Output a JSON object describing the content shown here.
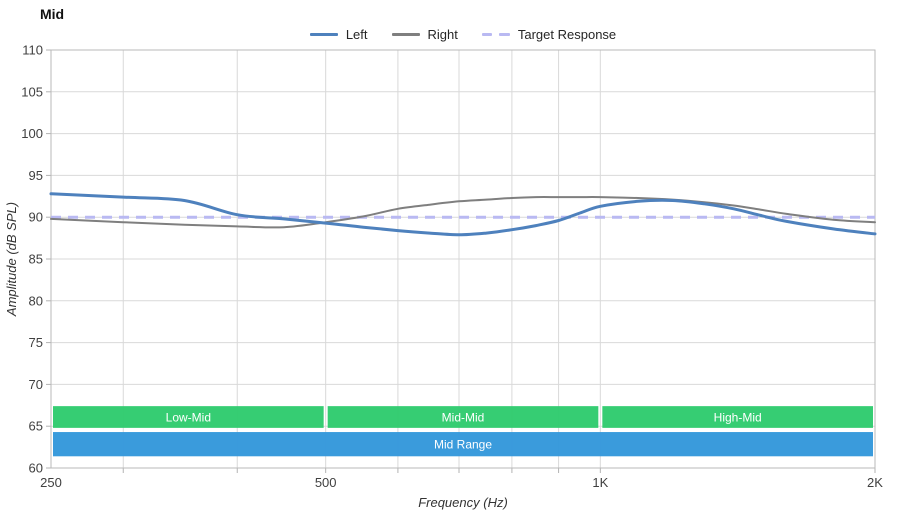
{
  "title": "Mid",
  "legend": [
    {
      "label": "Left",
      "type": "solid",
      "color": "#4e81bd"
    },
    {
      "label": "Right",
      "type": "solid",
      "color": "#7f7f7f"
    },
    {
      "label": "Target Response",
      "type": "dashed",
      "color": "#b9b9f2"
    }
  ],
  "chart_data": {
    "type": "line",
    "title": "Mid",
    "xlabel": "Frequency (Hz)",
    "ylabel": "Amplitude (dB SPL)",
    "x_scale": "log",
    "xlim": [
      250,
      2000
    ],
    "ylim": [
      60,
      110
    ],
    "grid": true,
    "legend_position": "top-center",
    "grid_color": "#d9d9d9",
    "axis_color": "#b3b3b3",
    "tick_text_color": "#404040",
    "xticks": [
      {
        "value": 250,
        "label": "250"
      },
      {
        "value": 500,
        "label": "500"
      },
      {
        "value": 1000,
        "label": "1K"
      },
      {
        "value": 2000,
        "label": "2K"
      }
    ],
    "yticks": [
      {
        "value": 110,
        "label": "110"
      },
      {
        "value": 105,
        "label": "105"
      },
      {
        "value": 100,
        "label": "100"
      },
      {
        "value": 95,
        "label": "95"
      },
      {
        "value": 90,
        "label": "90"
      },
      {
        "value": 85,
        "label": "85"
      },
      {
        "value": 80,
        "label": "80"
      },
      {
        "value": 75,
        "label": "75"
      },
      {
        "value": 70,
        "label": "70"
      },
      {
        "value": 65,
        "label": "65"
      },
      {
        "value": 60,
        "label": "60"
      }
    ],
    "xgrid": [
      300,
      400,
      500,
      600,
      700,
      800,
      900,
      1000,
      2000
    ],
    "x": [
      250,
      300,
      350,
      400,
      450,
      500,
      550,
      600,
      650,
      700,
      750,
      800,
      850,
      900,
      950,
      1000,
      1100,
      1200,
      1300,
      1400,
      1500,
      1600,
      1800,
      2000
    ],
    "series": [
      {
        "name": "Left",
        "color": "#4e81bd",
        "width": 3,
        "values": [
          92.8,
          92.4,
          92.0,
          90.3,
          89.8,
          89.3,
          88.8,
          88.4,
          88.1,
          87.9,
          88.1,
          88.5,
          89.0,
          89.6,
          90.5,
          91.3,
          91.9,
          92.0,
          91.6,
          91.0,
          90.2,
          89.5,
          88.6,
          88.0
        ]
      },
      {
        "name": "Right",
        "color": "#7f7f7f",
        "width": 2,
        "values": [
          89.8,
          89.4,
          89.1,
          88.9,
          88.8,
          89.4,
          90.1,
          91.0,
          91.5,
          91.9,
          92.1,
          92.3,
          92.4,
          92.4,
          92.4,
          92.4,
          92.3,
          92.1,
          91.8,
          91.4,
          90.9,
          90.4,
          89.7,
          89.4
        ]
      }
    ],
    "target": {
      "name": "Target Response",
      "value": 90,
      "color": "#b9b9f2",
      "width": 3,
      "dash": "10 7"
    },
    "band_rows": {
      "upper": {
        "top_db": 67.4,
        "bottom_db": 64.8
      },
      "lower": {
        "top_db": 64.3,
        "bottom_db": 61.4
      }
    },
    "bands": [
      {
        "label": "Low-Mid",
        "from": 250,
        "to": 500,
        "color": "#2fcb6e",
        "row": "upper"
      },
      {
        "label": "Mid-Mid",
        "from": 500,
        "to": 1000,
        "color": "#2fcb6e",
        "row": "upper"
      },
      {
        "label": "High-Mid",
        "from": 1000,
        "to": 2000,
        "color": "#2fcb6e",
        "row": "upper"
      },
      {
        "label": "Mid Range",
        "from": 250,
        "to": 2000,
        "color": "#3498db",
        "row": "lower"
      }
    ]
  }
}
